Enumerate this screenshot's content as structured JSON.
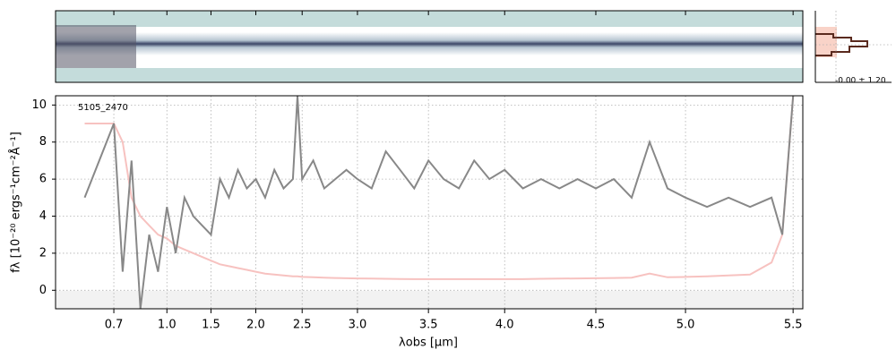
{
  "chart_data": {
    "type": "line",
    "annotation": "5105_2470",
    "ylabel": "fλ [10⁻²⁰ ergs⁻¹cm⁻²Å⁻¹]",
    "xlabel": "λobs [μm]",
    "profile_label": "-0.00 ± 1.20",
    "xlim": [
      0.6,
      5.55
    ],
    "ylim": [
      -1,
      10.5
    ],
    "xticks": [
      0.7,
      {
        "value": 1,
        "label": "1.0"
      },
      1.5,
      {
        "value": 2,
        "label": "2.0"
      },
      2.5,
      {
        "value": 3,
        "label": "3.0"
      },
      3.5,
      {
        "value": 4,
        "label": "4.0"
      },
      4.5,
      {
        "value": 5,
        "label": "5.0"
      },
      5.5
    ],
    "yticks": [
      0,
      2,
      4,
      6,
      8,
      10
    ],
    "grid": true,
    "x": [
      0.65,
      0.7,
      0.75,
      0.8,
      0.85,
      0.9,
      0.95,
      1.0,
      1.1,
      1.2,
      1.3,
      1.4,
      1.5,
      1.6,
      1.7,
      1.8,
      1.9,
      2.0,
      2.1,
      2.2,
      2.3,
      2.4,
      2.45,
      2.5,
      2.6,
      2.7,
      2.8,
      2.9,
      3.0,
      3.1,
      3.2,
      3.3,
      3.4,
      3.5,
      3.6,
      3.7,
      3.8,
      3.9,
      4.0,
      4.1,
      4.2,
      4.3,
      4.4,
      4.5,
      4.6,
      4.7,
      4.8,
      4.9,
      5.0,
      5.1,
      5.2,
      5.3,
      5.4,
      5.45,
      5.5
    ],
    "series": [
      {
        "color": "#888888",
        "values": [
          5,
          9,
          1,
          7,
          -1,
          3,
          1,
          4.5,
          2,
          5,
          4,
          3.5,
          3,
          6,
          5,
          6.5,
          5.5,
          6,
          5,
          6.5,
          5.5,
          6,
          10.5,
          6,
          7,
          5.5,
          6,
          6.5,
          6,
          5.5,
          7.5,
          6.5,
          5.5,
          7,
          6,
          5.5,
          7,
          6,
          6.5,
          5.5,
          6,
          5.5,
          6,
          5.5,
          6,
          5,
          8,
          5.5,
          5,
          4.5,
          5,
          4.5,
          5,
          3,
          10.5
        ]
      },
      {
        "color": "#f7c2c0",
        "values": [
          9,
          9,
          8,
          5,
          4,
          3.5,
          3,
          2.8,
          2.4,
          2.2,
          2,
          1.8,
          1.6,
          1.4,
          1.3,
          1.2,
          1.1,
          1,
          0.9,
          0.85,
          0.8,
          0.75,
          0.75,
          0.72,
          0.7,
          0.68,
          0.66,
          0.65,
          0.64,
          0.63,
          0.62,
          0.61,
          0.6,
          0.6,
          0.6,
          0.6,
          0.6,
          0.6,
          0.6,
          0.6,
          0.62,
          0.63,
          0.64,
          0.65,
          0.66,
          0.68,
          0.9,
          0.7,
          0.72,
          0.75,
          0.8,
          0.85,
          1.5,
          3,
          10.5
        ]
      }
    ]
  }
}
